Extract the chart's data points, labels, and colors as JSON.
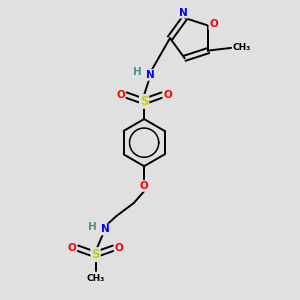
{
  "bg_color": "#e0e0e0",
  "atom_colors": {
    "C": "#000000",
    "H": "#4a9090",
    "N": "#0000ff",
    "O": "#ff0000",
    "S": "#cccc00"
  },
  "bond_color": "#000000",
  "figsize": [
    3.0,
    3.0
  ],
  "dpi": 100
}
